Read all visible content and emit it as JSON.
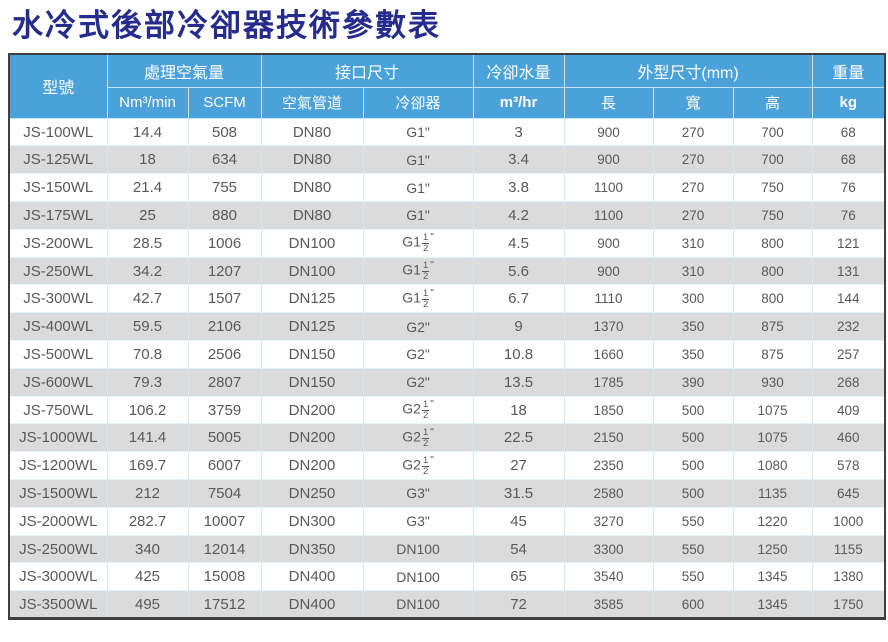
{
  "title": "水冷式後部冷卻器技術參數表",
  "colors": {
    "title_text": "#252C8D",
    "header_bg": "#4BA1DA",
    "header_text": "#FFFFFF",
    "row_alt_bg": "#DBDBDB",
    "body_text": "#595959",
    "grid_line": "#CFEAFA",
    "outer_border": "#3F3F3F"
  },
  "table": {
    "header": {
      "model": "型號",
      "capacity": "處理空氣量",
      "capacity_nm": "Nm³/min",
      "capacity_scfm": "SCFM",
      "port": "接口尺寸",
      "port_air": "空氣管道",
      "port_cooler": "冷卻器",
      "water": "冷卻水量",
      "water_unit": "m³/hr",
      "dims": "外型尺寸(mm)",
      "dim_length": "長",
      "dim_width": "寬",
      "dim_height": "高",
      "weight": "重量",
      "weight_unit": "kg"
    },
    "rows": [
      [
        "JS-100WL",
        "14.4",
        "508",
        "DN80",
        "G1\"",
        "3",
        "900",
        "270",
        "700",
        "68"
      ],
      [
        "JS-125WL",
        "18",
        "634",
        "DN80",
        "G1\"",
        "3.4",
        "900",
        "270",
        "700",
        "68"
      ],
      [
        "JS-150WL",
        "21.4",
        "755",
        "DN80",
        "G1\"",
        "3.8",
        "1100",
        "270",
        "750",
        "76"
      ],
      [
        "JS-175WL",
        "25",
        "880",
        "DN80",
        "G1\"",
        "4.2",
        "1100",
        "270",
        "750",
        "76"
      ],
      [
        "JS-200WL",
        "28.5",
        "1006",
        "DN100",
        "G1-1/2\"",
        "4.5",
        "900",
        "310",
        "800",
        "121"
      ],
      [
        "JS-250WL",
        "34.2",
        "1207",
        "DN100",
        "G1-1/2\"",
        "5.6",
        "900",
        "310",
        "800",
        "131"
      ],
      [
        "JS-300WL",
        "42.7",
        "1507",
        "DN125",
        "G1-1/2\"",
        "6.7",
        "1110",
        "300",
        "800",
        "144"
      ],
      [
        "JS-400WL",
        "59.5",
        "2106",
        "DN125",
        "G2\"",
        "9",
        "1370",
        "350",
        "875",
        "232"
      ],
      [
        "JS-500WL",
        "70.8",
        "2506",
        "DN150",
        "G2\"",
        "10.8",
        "1660",
        "350",
        "875",
        "257"
      ],
      [
        "JS-600WL",
        "79.3",
        "2807",
        "DN150",
        "G2\"",
        "13.5",
        "1785",
        "390",
        "930",
        "268"
      ],
      [
        "JS-750WL",
        "106.2",
        "3759",
        "DN200",
        "G2-1/2\"",
        "18",
        "1850",
        "500",
        "1075",
        "409"
      ],
      [
        "JS-1000WL",
        "141.4",
        "5005",
        "DN200",
        "G2-1/2\"",
        "22.5",
        "2150",
        "500",
        "1075",
        "460"
      ],
      [
        "JS-1200WL",
        "169.7",
        "6007",
        "DN200",
        "G2-1/2\"",
        "27",
        "2350",
        "500",
        "1080",
        "578"
      ],
      [
        "JS-1500WL",
        "212",
        "7504",
        "DN250",
        "G3\"",
        "31.5",
        "2580",
        "500",
        "1135",
        "645"
      ],
      [
        "JS-2000WL",
        "282.7",
        "10007",
        "DN300",
        "G3\"",
        "45",
        "3270",
        "550",
        "1220",
        "1000"
      ],
      [
        "JS-2500WL",
        "340",
        "12014",
        "DN350",
        "DN100",
        "54",
        "3300",
        "550",
        "1250",
        "1155"
      ],
      [
        "JS-3000WL",
        "425",
        "15008",
        "DN400",
        "DN100",
        "65",
        "3540",
        "550",
        "1345",
        "1380"
      ],
      [
        "JS-3500WL",
        "495",
        "17512",
        "DN400",
        "DN100",
        "72",
        "3585",
        "600",
        "1345",
        "1750"
      ]
    ]
  }
}
